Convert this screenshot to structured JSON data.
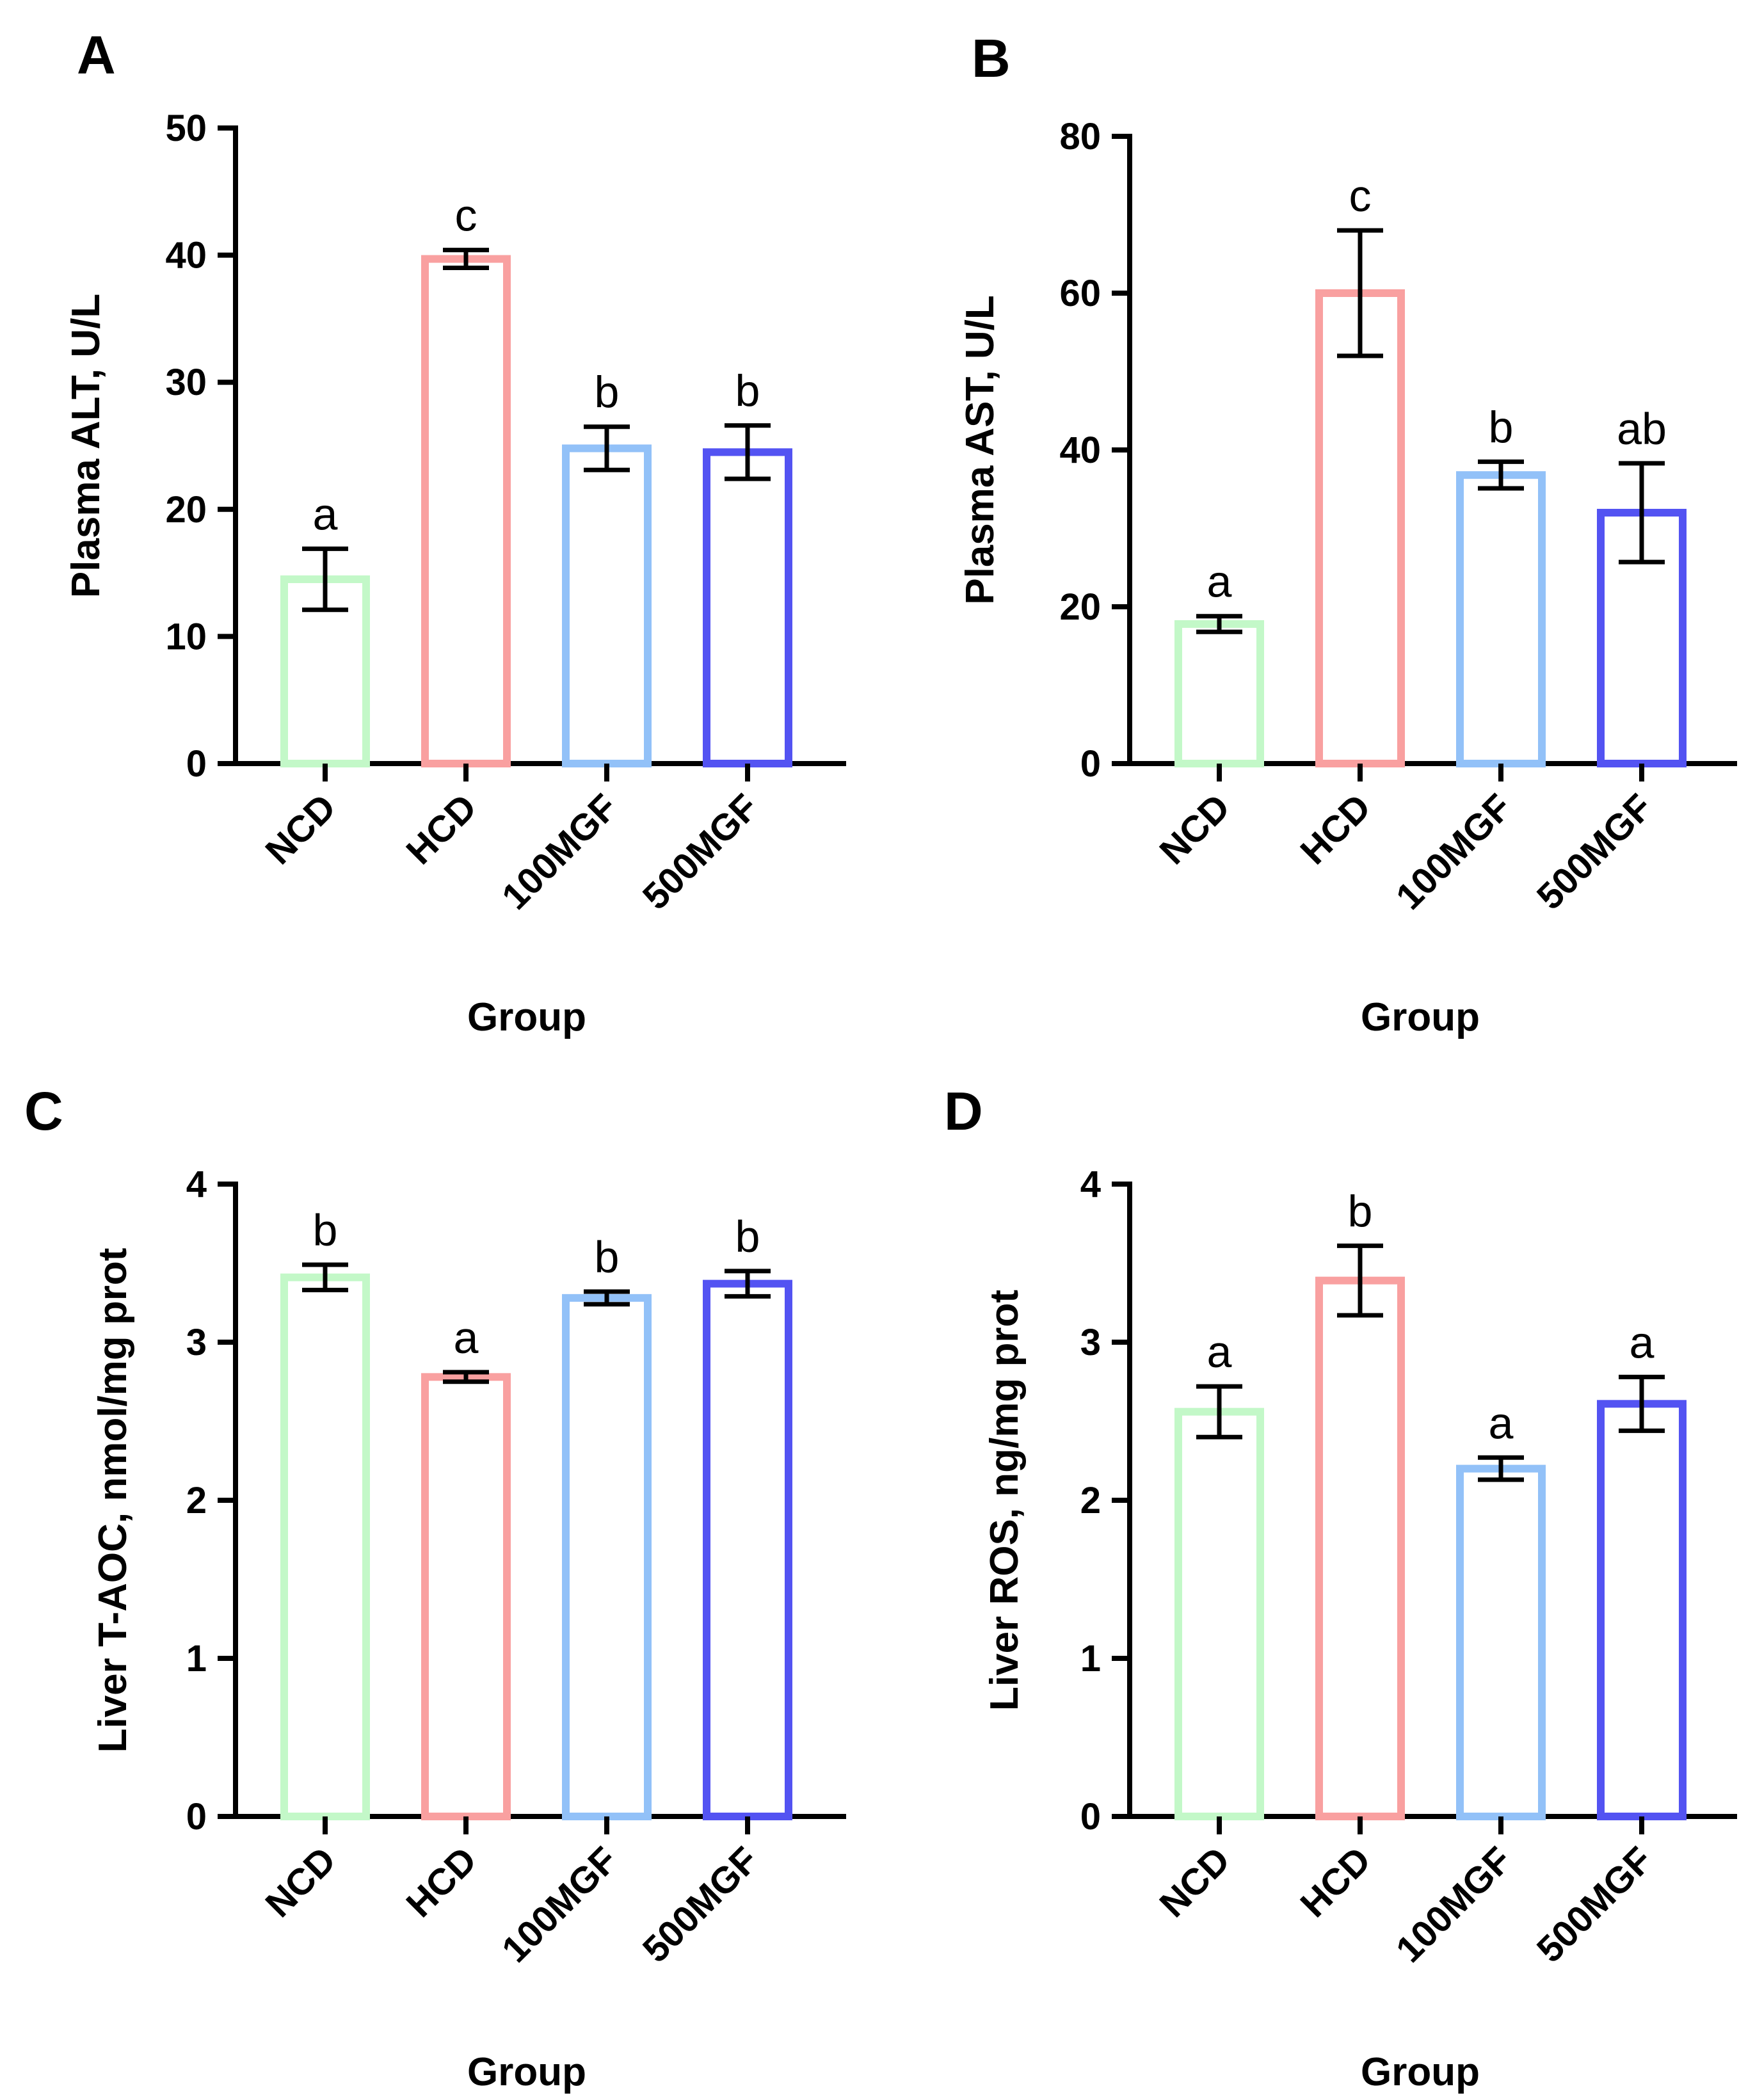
{
  "chart_data": [
    {
      "panel": "A",
      "type": "bar",
      "categories": [
        "NCD",
        "HCD",
        "100MGF",
        "500MGF"
      ],
      "values": [
        14.5,
        39.7,
        24.8,
        24.5
      ],
      "errors": [
        2.4,
        0.7,
        1.7,
        2.1
      ],
      "significance": [
        "a",
        "c",
        "b",
        "b"
      ],
      "colors": [
        "#c3f8c8",
        "#f9a0a0",
        "#92c1f8",
        "#5353f2"
      ],
      "xlabel": "Group",
      "ylabel": "Plasma ALT, U/L",
      "ylim": [
        0,
        50
      ],
      "yticks": [
        0,
        10,
        20,
        30,
        40,
        50
      ],
      "ytick_labels": [
        "0",
        "10",
        "20",
        "30",
        "40",
        "50"
      ]
    },
    {
      "panel": "B",
      "type": "bar",
      "categories": [
        "NCD",
        "HCD",
        "100MGF",
        "500MGF"
      ],
      "values": [
        17.8,
        60.0,
        36.8,
        32.0
      ],
      "errors": [
        1.0,
        8.0,
        1.7,
        6.3
      ],
      "significance": [
        "a",
        "c",
        "b",
        "ab"
      ],
      "colors": [
        "#c3f8c8",
        "#f9a0a0",
        "#92c1f8",
        "#5353f2"
      ],
      "xlabel": "Group",
      "ylabel": "Plasma AST, U/L",
      "ylim": [
        0,
        80
      ],
      "yticks": [
        0,
        20,
        40,
        60,
        80
      ],
      "ytick_labels": [
        "0",
        "20",
        "40",
        "60",
        "80"
      ]
    },
    {
      "panel": "C",
      "type": "bar",
      "categories": [
        "NCD",
        "HCD",
        "100MGF",
        "500MGF"
      ],
      "values": [
        3.41,
        2.78,
        3.28,
        3.37
      ],
      "errors": [
        0.08,
        0.03,
        0.04,
        0.08
      ],
      "significance": [
        "b",
        "a",
        "b",
        "b"
      ],
      "colors": [
        "#c3f8c8",
        "#f9a0a0",
        "#92c1f8",
        "#5353f2"
      ],
      "xlabel": "Group",
      "ylabel": "Liver T-AOC, nmol/mg prot",
      "ylim": [
        0,
        4
      ],
      "yticks": [
        0,
        1,
        2,
        3,
        4
      ],
      "ytick_labels": [
        "0",
        "1",
        "2",
        "3",
        "4"
      ]
    },
    {
      "panel": "D",
      "type": "bar",
      "categories": [
        "NCD",
        "HCD",
        "100MGF",
        "500MGF"
      ],
      "values": [
        2.56,
        3.39,
        2.2,
        2.61
      ],
      "errors": [
        0.16,
        0.22,
        0.07,
        0.17
      ],
      "significance": [
        "a",
        "b",
        "a",
        "a"
      ],
      "colors": [
        "#c3f8c8",
        "#f9a0a0",
        "#92c1f8",
        "#5353f2"
      ],
      "xlabel": "Group",
      "ylabel": "Liver ROS, ng/mg prot",
      "ylim": [
        0,
        4
      ],
      "yticks": [
        0,
        1,
        2,
        3,
        4
      ],
      "ytick_labels": [
        "0",
        "1",
        "2",
        "3",
        "4"
      ]
    }
  ]
}
